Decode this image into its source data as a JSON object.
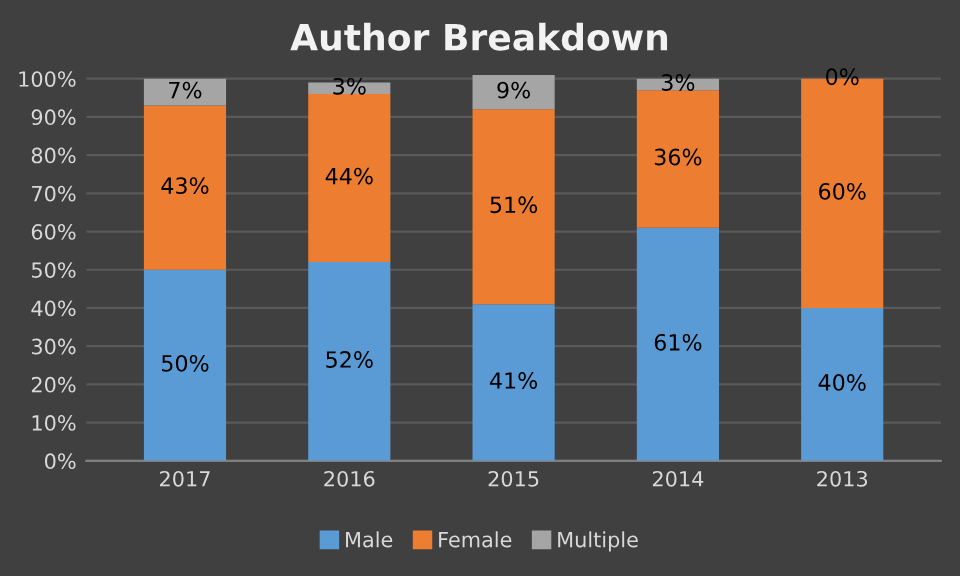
{
  "chart_data": {
    "type": "bar",
    "title": "Author Breakdown",
    "stacked": true,
    "categories": [
      "2017",
      "2016",
      "2015",
      "2014",
      "2013"
    ],
    "series": [
      {
        "name": "Male",
        "color": "#5b9bd5",
        "values": [
          50,
          52,
          41,
          61,
          40
        ],
        "value_labels": [
          "50%",
          "52%",
          "41%",
          "61%",
          "40%"
        ]
      },
      {
        "name": "Female",
        "color": "#ed7d31",
        "values": [
          43,
          44,
          51,
          36,
          60
        ],
        "value_labels": [
          "43%",
          "44%",
          "51%",
          "36%",
          "60%"
        ]
      },
      {
        "name": "Multiple",
        "color": "#a5a5a5",
        "values": [
          7,
          3,
          9,
          3,
          0
        ],
        "value_labels": [
          "7%",
          "3%",
          "9%",
          "3%",
          "0%"
        ]
      }
    ],
    "ylim": [
      0,
      101
    ],
    "yticks": [
      {
        "value": 0,
        "label": "0%"
      },
      {
        "value": 10,
        "label": "10%"
      },
      {
        "value": 20,
        "label": "20%"
      },
      {
        "value": 30,
        "label": "30%"
      },
      {
        "value": 40,
        "label": "40%"
      },
      {
        "value": 50,
        "label": "50%"
      },
      {
        "value": 60,
        "label": "60%"
      },
      {
        "value": 70,
        "label": "70%"
      },
      {
        "value": 80,
        "label": "80%"
      },
      {
        "value": 90,
        "label": "90%"
      },
      {
        "value": 100,
        "label": "100%"
      }
    ],
    "grid": "y",
    "legend": "bottom"
  }
}
